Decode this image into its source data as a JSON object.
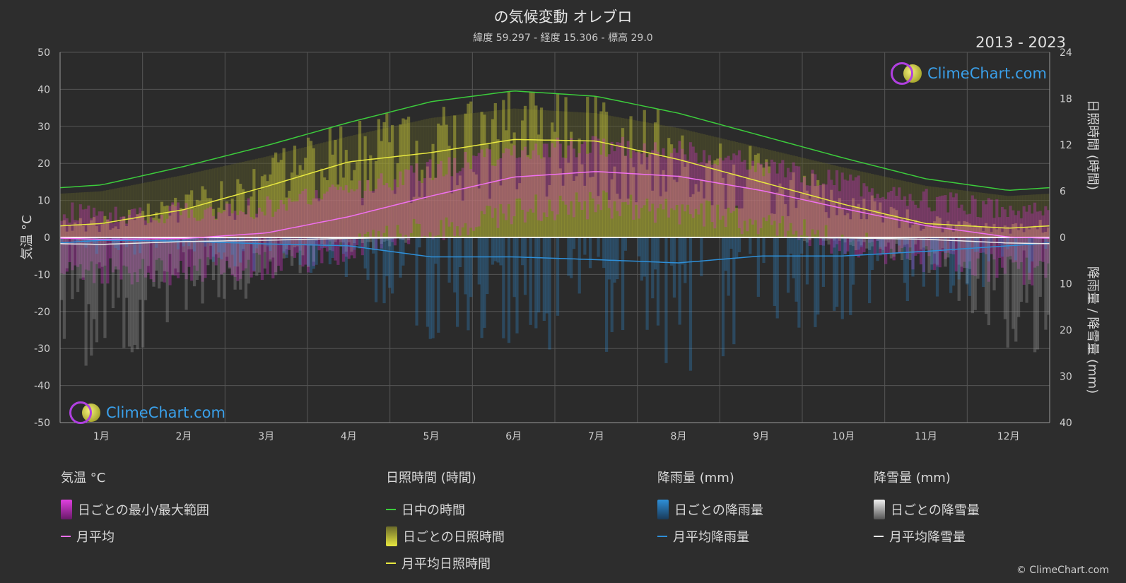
{
  "title": "の気候変動 オレブロ",
  "subtitle": "緯度 59.297 - 経度 15.306 - 標高 29.0",
  "period": "2013 - 2023",
  "logo_text": "ClimeChart.com",
  "copyright": "© ClimeChart.com",
  "colors": {
    "background": "#2d2d2d",
    "daylight": "#3ccc3c",
    "sunshine": "#e8e840",
    "temp_avg": "#f070f0",
    "temp_range": "#d030c8",
    "rain": "#2e8fd8",
    "snow": "#e8e8e8"
  },
  "chart_data": {
    "type": "line",
    "months": [
      "1月",
      "2月",
      "3月",
      "4月",
      "5月",
      "6月",
      "7月",
      "8月",
      "9月",
      "10月",
      "11月",
      "12月"
    ],
    "left_axis": {
      "label": "気温 °C",
      "range": [
        -50,
        50
      ],
      "ticks": [
        "50",
        "40",
        "30",
        "20",
        "10",
        "0",
        "-10",
        "-20",
        "-30",
        "-40",
        "-50"
      ]
    },
    "right_axis_top": {
      "label": "日照時間 (時間)",
      "range": [
        0,
        24
      ],
      "ticks": [
        "24",
        "18",
        "12",
        "6",
        "0"
      ]
    },
    "right_axis_bottom": {
      "label": "降雨量 / 降雪量 (mm)",
      "range": [
        0,
        40
      ],
      "ticks": [
        "10",
        "20",
        "30",
        "40"
      ]
    },
    "series": [
      {
        "name": "日中の時間",
        "unit": "hours",
        "values": [
          6.8,
          9.2,
          11.9,
          14.9,
          17.6,
          19.0,
          18.3,
          16.1,
          13.2,
          10.3,
          7.6,
          6.1
        ]
      },
      {
        "name": "月平均日照時間",
        "unit": "hours",
        "values": [
          1.8,
          3.6,
          6.6,
          9.8,
          11.0,
          12.7,
          12.5,
          10.1,
          7.2,
          4.3,
          1.8,
          1.2
        ]
      },
      {
        "name": "月平均",
        "unit": "°C",
        "values": [
          -0.5,
          -0.3,
          1.2,
          5.6,
          11.2,
          16.3,
          17.8,
          16.5,
          12.7,
          7.8,
          3.2,
          0.1
        ]
      },
      {
        "name": "月平均降雨量",
        "unit": "mm",
        "values": [
          0.6,
          0.8,
          1.4,
          1.8,
          4.2,
          4.2,
          4.8,
          5.5,
          4.0,
          4.0,
          3.0,
          1.8
        ]
      },
      {
        "name": "月平均降雪量",
        "unit": "mm",
        "values": [
          1.5,
          0.9,
          0.6,
          0.2,
          0.0,
          0.0,
          0.0,
          0.0,
          0.0,
          0.1,
          0.4,
          1.2
        ]
      }
    ],
    "grid": true
  },
  "legend": {
    "temp": {
      "title": "気温 °C",
      "items": [
        "日ごとの最小/最大範囲",
        "月平均"
      ]
    },
    "sun": {
      "title": "日照時間 (時間)",
      "items": [
        "日中の時間",
        "日ごとの日照時間",
        "月平均日照時間"
      ]
    },
    "rain": {
      "title": "降雨量 (mm)",
      "items": [
        "日ごとの降雨量",
        "月平均降雨量"
      ]
    },
    "snow": {
      "title": "降雪量 (mm)",
      "items": [
        "日ごとの降雪量",
        "月平均降雪量"
      ]
    }
  }
}
